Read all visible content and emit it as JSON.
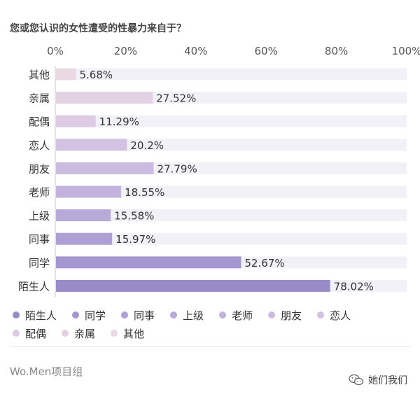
{
  "footer": {
    "brand": "Wo.Men项目组",
    "account": "她们我们",
    "account_icon": "wechat-icon"
  },
  "chart_data": {
    "type": "bar",
    "orientation": "horizontal",
    "title": "您或您认识的女性遭受的性暴力来自于？",
    "xlim": [
      0,
      100
    ],
    "x_ticks": [
      "0%",
      "20%",
      "40%",
      "60%",
      "80%",
      "100%"
    ],
    "categories": [
      "其他",
      "亲属",
      "配偶",
      "恋人",
      "朋友",
      "老师",
      "上级",
      "同事",
      "同学",
      "陌生人"
    ],
    "values": [
      5.68,
      27.52,
      11.29,
      20.2,
      27.79,
      18.55,
      15.58,
      15.97,
      52.67,
      78.02
    ],
    "value_labels": [
      "5.68%",
      "27.52%",
      "11.29%",
      "20.2%",
      "27.79%",
      "18.55%",
      "15.58%",
      "15.97%",
      "52.67%",
      "78.02%"
    ],
    "colors": [
      "#ead9e3",
      "#e3d2e4",
      "#dccbe3",
      "#d3c2e2",
      "#cbbbe0",
      "#c2b3de",
      "#b7a9d8",
      "#aea0d4",
      "#a496cf",
      "#998bc8"
    ],
    "track_color": "#f3f1f8",
    "legend_order": [
      "陌生人",
      "同学",
      "同事",
      "上级",
      "老师",
      "朋友",
      "恋人",
      "配偶",
      "亲属",
      "其他"
    ],
    "legend_placement": "bottom",
    "grid": false
  }
}
